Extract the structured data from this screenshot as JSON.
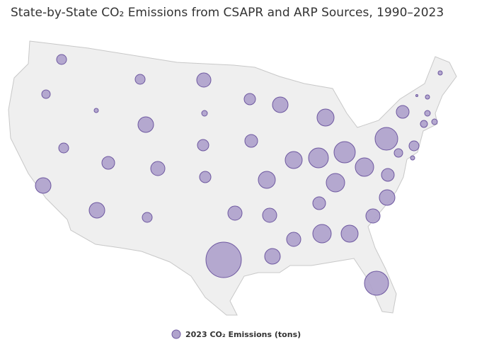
{
  "chart_data": {
    "type": "bubble",
    "title": "State-by-State CO₂ Emissions from CSAPR and ARP Sources, 1990–2023",
    "series": [
      {
        "name": "2023 CO₂ Emissions (tons)",
        "color": "#b0a3cc",
        "values": [
          14700000,
          10800000,
          2700000,
          14700000,
          36300000,
          30000000,
          4800000,
          19200000,
          19200000,
          14700000,
          24300000,
          30000000,
          36300000,
          36300000,
          14700000,
          30000000,
          187500000,
          19200000,
          24300000,
          43200000,
          30000000,
          36300000,
          36300000,
          43200000,
          43200000,
          58800000,
          67500000,
          50700000,
          24300000,
          30000000,
          50700000,
          43200000,
          86700000,
          30000000,
          36300000,
          24300000,
          50700000,
          76800000,
          24300000,
          10800000,
          2700000,
          14700000,
          7500000,
          4800000,
          4800000,
          2700000,
          675000,
          2700000
        ]
      }
    ]
  }
}
